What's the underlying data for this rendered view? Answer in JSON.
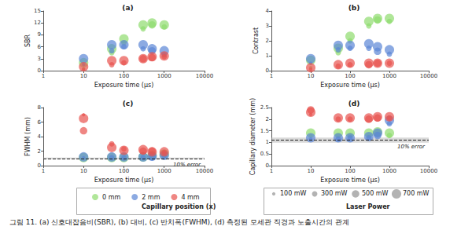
{
  "chart_data": [
    {
      "type": "scatter",
      "title": "(a)",
      "x_label": "Exposure time (μs)",
      "y_label": "SBR",
      "log": "x",
      "grid": false,
      "xlim": [
        1,
        10000
      ],
      "xticks": [
        1,
        10,
        100,
        1000,
        10000
      ],
      "ylim": [
        0,
        15
      ],
      "yticks": [
        0,
        3,
        6,
        9,
        12,
        15
      ],
      "series": [
        {
          "name": "0 mm",
          "color": "#8fdc6e",
          "values": [
            [
              10,
              0.5,
              100
            ],
            [
              10,
              2,
              700
            ],
            [
              50,
              4.5,
              300
            ],
            [
              50,
              5.5,
              700
            ],
            [
              100,
              7,
              300
            ],
            [
              100,
              8,
              700
            ],
            [
              300,
              10.5,
              300
            ],
            [
              300,
              11.5,
              700
            ],
            [
              500,
              11.5,
              500
            ],
            [
              500,
              12,
              700
            ],
            [
              1000,
              11,
              300
            ],
            [
              1000,
              11.5,
              700
            ]
          ]
        },
        {
          "name": "2 mm",
          "color": "#5b86d6",
          "values": [
            [
              10,
              1.5,
              100
            ],
            [
              10,
              3,
              700
            ],
            [
              50,
              5,
              300
            ],
            [
              50,
              6.5,
              700
            ],
            [
              100,
              6,
              300
            ],
            [
              100,
              6.5,
              700
            ],
            [
              300,
              5.5,
              300
            ],
            [
              300,
              6.5,
              700
            ],
            [
              500,
              5,
              500
            ],
            [
              500,
              5.5,
              700
            ],
            [
              1000,
              4,
              300
            ],
            [
              1000,
              5,
              700
            ]
          ]
        },
        {
          "name": "4 mm",
          "color": "#e8534f",
          "values": [
            [
              10,
              0.3,
              100
            ],
            [
              10,
              1,
              700
            ],
            [
              50,
              1.5,
              300
            ],
            [
              50,
              2.5,
              700
            ],
            [
              100,
              2,
              300
            ],
            [
              100,
              2.5,
              700
            ],
            [
              300,
              3,
              500
            ],
            [
              300,
              3,
              700
            ],
            [
              500,
              3.3,
              500
            ],
            [
              500,
              3.5,
              700
            ],
            [
              1000,
              3.5,
              300
            ],
            [
              1000,
              3.7,
              700
            ]
          ]
        }
      ]
    },
    {
      "type": "scatter",
      "title": "(b)",
      "x_label": "Exposure time (μs)",
      "y_label": "Contrast",
      "log": "x",
      "grid": false,
      "xlim": [
        1,
        10000
      ],
      "xticks": [
        1,
        10,
        100,
        1000,
        10000
      ],
      "ylim": [
        0,
        4
      ],
      "yticks": [
        0,
        1,
        2,
        3,
        4
      ],
      "series": [
        {
          "name": "0 mm",
          "color": "#8fdc6e",
          "values": [
            [
              10,
              0.2,
              100
            ],
            [
              10,
              0.7,
              700
            ],
            [
              50,
              1.2,
              300
            ],
            [
              50,
              1.5,
              700
            ],
            [
              100,
              2,
              300
            ],
            [
              100,
              2.3,
              700
            ],
            [
              300,
              3,
              300
            ],
            [
              300,
              3.3,
              700
            ],
            [
              500,
              3.4,
              500
            ],
            [
              500,
              3.5,
              700
            ],
            [
              1000,
              3.3,
              300
            ],
            [
              1000,
              3.5,
              700
            ]
          ]
        },
        {
          "name": "2 mm",
          "color": "#5b86d6",
          "values": [
            [
              10,
              0.5,
              100
            ],
            [
              10,
              0.8,
              700
            ],
            [
              50,
              1.4,
              300
            ],
            [
              50,
              1.7,
              700
            ],
            [
              100,
              1.5,
              300
            ],
            [
              100,
              1.7,
              700
            ],
            [
              300,
              1.5,
              300
            ],
            [
              300,
              1.8,
              700
            ],
            [
              500,
              1.3,
              500
            ],
            [
              500,
              1.6,
              700
            ],
            [
              1000,
              1.1,
              300
            ],
            [
              1000,
              1.4,
              700
            ]
          ]
        },
        {
          "name": "4 mm",
          "color": "#e8534f",
          "values": [
            [
              10,
              0.1,
              100
            ],
            [
              10,
              0.2,
              700
            ],
            [
              50,
              0.3,
              300
            ],
            [
              50,
              0.4,
              700
            ],
            [
              100,
              0.4,
              300
            ],
            [
              100,
              0.5,
              700
            ],
            [
              300,
              0.4,
              500
            ],
            [
              300,
              0.5,
              700
            ],
            [
              500,
              0.5,
              500
            ],
            [
              500,
              0.5,
              700
            ],
            [
              1000,
              0.5,
              300
            ],
            [
              1000,
              0.5,
              700
            ]
          ]
        }
      ]
    },
    {
      "type": "scatter",
      "title": "(c)",
      "x_label": "Exposure time (μs)",
      "y_label": "FWHM (mm)",
      "log": "x",
      "grid": false,
      "xlim": [
        1,
        10000
      ],
      "xticks": [
        1,
        10,
        100,
        1000,
        10000
      ],
      "ylim": [
        0,
        8
      ],
      "yticks": [
        0,
        2,
        4,
        6,
        8
      ],
      "reference": {
        "value": 1.0,
        "band": [
          0.9,
          1.1
        ],
        "label": "10% error"
      },
      "series": [
        {
          "name": "0 mm",
          "color": "#8fdc6e",
          "values": [
            [
              10,
              1.0,
              100
            ],
            [
              10,
              1.1,
              700
            ],
            [
              50,
              1.0,
              300
            ],
            [
              50,
              1.1,
              700
            ],
            [
              100,
              1.0,
              300
            ],
            [
              100,
              1.1,
              700
            ],
            [
              300,
              1.1,
              300
            ],
            [
              300,
              1.2,
              700
            ],
            [
              500,
              1.3,
              500
            ],
            [
              500,
              1.4,
              700
            ],
            [
              1000,
              1.5,
              300
            ],
            [
              1000,
              1.6,
              700
            ]
          ]
        },
        {
          "name": "2 mm",
          "color": "#5b86d6",
          "values": [
            [
              10,
              1.1,
              100
            ],
            [
              10,
              1.2,
              700
            ],
            [
              50,
              1.1,
              300
            ],
            [
              50,
              1.2,
              700
            ],
            [
              100,
              1.1,
              300
            ],
            [
              100,
              1.2,
              700
            ],
            [
              300,
              1.1,
              300
            ],
            [
              300,
              1.2,
              700
            ],
            [
              500,
              1.2,
              500
            ],
            [
              500,
              1.3,
              700
            ],
            [
              1000,
              1.3,
              300
            ],
            [
              1000,
              1.4,
              700
            ]
          ]
        },
        {
          "name": "4 mm",
          "color": "#e8534f",
          "values": [
            [
              10,
              7.0,
              100
            ],
            [
              10,
              6.5,
              700
            ],
            [
              10,
              4.8,
              500
            ],
            [
              50,
              3.0,
              300
            ],
            [
              50,
              2.5,
              700
            ],
            [
              100,
              2.3,
              300
            ],
            [
              100,
              2.1,
              700
            ],
            [
              300,
              2.0,
              500
            ],
            [
              300,
              2.2,
              700
            ],
            [
              500,
              2.0,
              500
            ],
            [
              500,
              1.9,
              700
            ],
            [
              1000,
              1.8,
              300
            ],
            [
              1000,
              1.9,
              700
            ]
          ]
        }
      ]
    },
    {
      "type": "scatter",
      "title": "(d)",
      "x_label": "Exposure time (μs)",
      "y_label": "Capillary diameter (mm)",
      "log": "x",
      "grid": false,
      "xlim": [
        1,
        10000
      ],
      "xticks": [
        1,
        10,
        100,
        1000,
        10000
      ],
      "ylim": [
        0,
        2.5
      ],
      "yticks": [
        0,
        0.5,
        1,
        1.5,
        2,
        2.5
      ],
      "reference": {
        "value": 1.1,
        "band": [
          0.99,
          1.21
        ],
        "label": "10% error"
      },
      "series": [
        {
          "name": "0 mm",
          "color": "#8fdc6e",
          "values": [
            [
              10,
              1.3,
              100
            ],
            [
              10,
              1.4,
              700
            ],
            [
              50,
              1.3,
              300
            ],
            [
              50,
              1.4,
              700
            ],
            [
              100,
              1.3,
              300
            ],
            [
              100,
              1.4,
              700
            ],
            [
              300,
              1.3,
              300
            ],
            [
              300,
              1.4,
              700
            ],
            [
              500,
              1.4,
              500
            ],
            [
              500,
              1.45,
              700
            ],
            [
              1000,
              1.3,
              300
            ],
            [
              1000,
              1.4,
              700
            ]
          ]
        },
        {
          "name": "2 mm",
          "color": "#5b86d6",
          "values": [
            [
              10,
              1.15,
              100
            ],
            [
              10,
              1.2,
              700
            ],
            [
              50,
              1.15,
              300
            ],
            [
              50,
              1.2,
              700
            ],
            [
              100,
              1.2,
              300
            ],
            [
              100,
              1.2,
              700
            ],
            [
              300,
              1.2,
              300
            ],
            [
              300,
              1.25,
              700
            ],
            [
              500,
              1.3,
              500
            ],
            [
              500,
              1.4,
              700
            ],
            [
              1000,
              1.8,
              300
            ],
            [
              1000,
              1.95,
              700
            ]
          ]
        },
        {
          "name": "4 mm",
          "color": "#e8534f",
          "values": [
            [
              10,
              2.2,
              100
            ],
            [
              10,
              2.3,
              700
            ],
            [
              10,
              2.4,
              500
            ],
            [
              50,
              2.0,
              300
            ],
            [
              50,
              2.05,
              700
            ],
            [
              100,
              2.0,
              300
            ],
            [
              100,
              2.05,
              700
            ],
            [
              300,
              2.0,
              500
            ],
            [
              300,
              2.05,
              700
            ],
            [
              500,
              2.05,
              500
            ],
            [
              500,
              2.1,
              700
            ],
            [
              1000,
              2.05,
              300
            ],
            [
              1000,
              2.1,
              700
            ]
          ]
        }
      ]
    }
  ],
  "position_legend": {
    "title": "Capillary position (x)"
  },
  "power_legend": {
    "title": "Laser Power",
    "entries": [
      {
        "value": 100,
        "label": "100 mW"
      },
      {
        "value": 300,
        "label": "300 mW"
      },
      {
        "value": 500,
        "label": "500 mW"
      },
      {
        "value": 700,
        "label": "700 mW"
      }
    ]
  },
  "caption": "그림 11. (a) 신호대잡음비(SBR), (b) 대비, (c) 반치폭(FWHM), (d) 측정된 모세관 직경과 노출시간의 관계"
}
